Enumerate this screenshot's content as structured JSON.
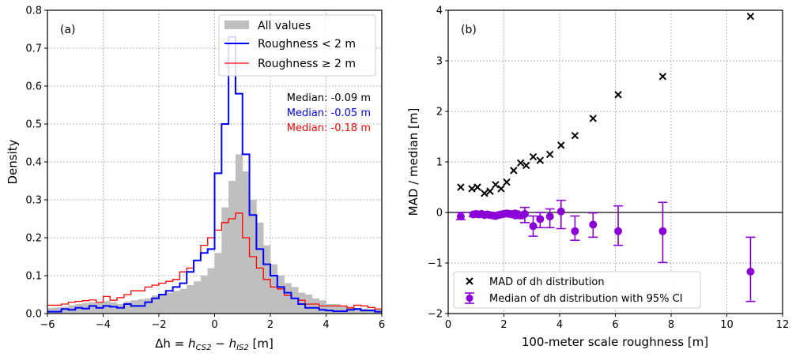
{
  "chart_data": [
    {
      "panel": "a",
      "type": "histogram",
      "panel_label": "(a)",
      "xlabel_parts": {
        "delta": "Δh",
        "eq": " = ",
        "h1": "h",
        "sub1": "CS2",
        "minus": " − ",
        "h2": "h",
        "sub2": "IS2",
        "unit": " [m]"
      },
      "ylabel": "Density",
      "xlim": [
        -6,
        6
      ],
      "ylim": [
        0,
        0.8
      ],
      "xticks": [
        -6,
        -4,
        -2,
        0,
        2,
        4,
        6
      ],
      "xtick_labels": [
        "−6",
        "−4",
        "−2",
        "0",
        "2",
        "4",
        "6"
      ],
      "yticks": [
        0.0,
        0.1,
        0.2,
        0.3,
        0.4,
        0.5,
        0.6,
        0.7,
        0.8
      ],
      "ytick_labels": [
        "0.0",
        "0.1",
        "0.2",
        "0.3",
        "0.4",
        "0.5",
        "0.6",
        "0.7",
        "0.8"
      ],
      "grid": true,
      "legend_position": "top-right",
      "bin_edges_start": -6,
      "bin_width": 0.25,
      "series": [
        {
          "name": "All values",
          "style": "filled",
          "color": "#bfbfbf",
          "values": [
            0.015,
            0.016,
            0.018,
            0.022,
            0.025,
            0.028,
            0.03,
            0.028,
            0.033,
            0.03,
            0.025,
            0.032,
            0.035,
            0.038,
            0.04,
            0.048,
            0.052,
            0.055,
            0.06,
            0.065,
            0.075,
            0.085,
            0.1,
            0.12,
            0.16,
            0.28,
            0.35,
            0.42,
            0.375,
            0.3,
            0.24,
            0.18,
            0.13,
            0.1,
            0.08,
            0.07,
            0.055,
            0.05,
            0.04,
            0.035,
            0.025,
            0.025,
            0.02,
            0.018,
            0.015,
            0.013,
            0.012,
            0.01
          ]
        },
        {
          "name": "Roughness < 2 m",
          "style": "step",
          "color": "#0000ff",
          "values": [
            0.005,
            0.005,
            0.012,
            0.01,
            0.015,
            0.013,
            0.02,
            0.015,
            0.02,
            0.018,
            0.015,
            0.025,
            0.02,
            0.02,
            0.03,
            0.04,
            0.05,
            0.06,
            0.07,
            0.08,
            0.11,
            0.14,
            0.16,
            0.17,
            0.37,
            0.5,
            0.73,
            0.58,
            0.42,
            0.26,
            0.17,
            0.13,
            0.1,
            0.07,
            0.055,
            0.04,
            0.025,
            0.015,
            0.015,
            0.01,
            0.008,
            0.006,
            0.006,
            0.01,
            0.012,
            0.008,
            0.008,
            0.005
          ]
        },
        {
          "name": "Roughness ≥ 2 m",
          "style": "step",
          "color": "#ff0000",
          "values": [
            0.022,
            0.022,
            0.025,
            0.03,
            0.032,
            0.034,
            0.036,
            0.03,
            0.045,
            0.035,
            0.042,
            0.05,
            0.06,
            0.06,
            0.07,
            0.075,
            0.08,
            0.085,
            0.09,
            0.11,
            0.12,
            0.14,
            0.18,
            0.2,
            0.22,
            0.24,
            0.25,
            0.265,
            0.2,
            0.15,
            0.12,
            0.09,
            0.07,
            0.065,
            0.048,
            0.04,
            0.035,
            0.025,
            0.025,
            0.02,
            0.02,
            0.02,
            0.02,
            0.015,
            0.022,
            0.02,
            0.016,
            0.012
          ]
        }
      ],
      "annotations": [
        {
          "text": "Median: -0.09 m",
          "color": "#000000"
        },
        {
          "text": "Median: -0.05 m",
          "color": "#0000ff"
        },
        {
          "text": "Median: -0.18 m",
          "color": "#ff0000"
        }
      ]
    },
    {
      "panel": "b",
      "type": "scatter",
      "panel_label": "(b)",
      "xlabel": "100-meter scale roughness [m]",
      "ylabel": "MAD / median [m]",
      "xlim": [
        0,
        12
      ],
      "ylim": [
        -2,
        4
      ],
      "xticks": [
        0,
        2,
        4,
        6,
        8,
        10,
        12
      ],
      "xtick_labels": [
        "0",
        "2",
        "4",
        "6",
        "8",
        "10",
        "12"
      ],
      "yticks": [
        -2,
        -1,
        0,
        1,
        2,
        3,
        4
      ],
      "ytick_labels": [
        "−2",
        "−1",
        "0",
        "1",
        "2",
        "3",
        "4"
      ],
      "grid": true,
      "legend_position": "lower-left",
      "hline_y": 0,
      "series": [
        {
          "name": "MAD of dh distribution",
          "marker": "x",
          "color": "#000000",
          "x": [
            0.45,
            0.85,
            1.05,
            1.3,
            1.5,
            1.7,
            1.9,
            2.1,
            2.35,
            2.6,
            2.8,
            3.05,
            3.3,
            3.65,
            4.05,
            4.55,
            5.2,
            6.1,
            7.7,
            10.85
          ],
          "y": [
            0.5,
            0.47,
            0.5,
            0.38,
            0.42,
            0.55,
            0.47,
            0.6,
            0.83,
            0.98,
            0.93,
            1.1,
            1.03,
            1.15,
            1.33,
            1.52,
            1.86,
            2.33,
            2.69,
            3.88
          ]
        },
        {
          "name": "Median of dh distribution with 95% CI",
          "marker": "o",
          "color": "#8b00d6",
          "x": [
            0.45,
            0.9,
            1.0,
            1.1,
            1.2,
            1.3,
            1.4,
            1.5,
            1.6,
            1.7,
            1.8,
            1.9,
            2.0,
            2.1,
            2.2,
            2.3,
            2.4,
            2.5,
            2.6,
            2.75,
            3.05,
            3.3,
            3.65,
            4.05,
            4.55,
            5.2,
            6.1,
            7.7,
            10.85
          ],
          "y": [
            -0.08,
            -0.04,
            -0.03,
            -0.04,
            -0.03,
            -0.05,
            -0.04,
            -0.05,
            -0.06,
            -0.07,
            -0.05,
            -0.04,
            -0.03,
            -0.02,
            -0.03,
            -0.04,
            -0.02,
            -0.05,
            -0.06,
            -0.03,
            -0.27,
            -0.13,
            -0.08,
            0.02,
            -0.37,
            -0.24,
            -0.37,
            -0.37,
            -1.17
          ],
          "ci_low": [
            -0.14,
            -0.08,
            -0.07,
            -0.08,
            -0.07,
            -0.09,
            -0.08,
            -0.09,
            -0.1,
            -0.11,
            -0.09,
            -0.08,
            -0.07,
            -0.06,
            -0.08,
            -0.09,
            -0.07,
            -0.12,
            -0.12,
            -0.2,
            -0.47,
            -0.3,
            -0.3,
            -0.32,
            -0.55,
            -0.49,
            -0.65,
            -0.99,
            -1.76
          ],
          "ci_high": [
            0.0,
            0.0,
            0.0,
            0.0,
            0.0,
            -0.01,
            0.0,
            -0.01,
            -0.02,
            -0.03,
            -0.01,
            0.0,
            0.01,
            0.02,
            0.02,
            0.01,
            0.03,
            0.01,
            0.0,
            0.1,
            -0.07,
            0.0,
            0.07,
            0.24,
            -0.07,
            -0.01,
            0.13,
            0.2,
            -0.49
          ]
        }
      ]
    }
  ]
}
